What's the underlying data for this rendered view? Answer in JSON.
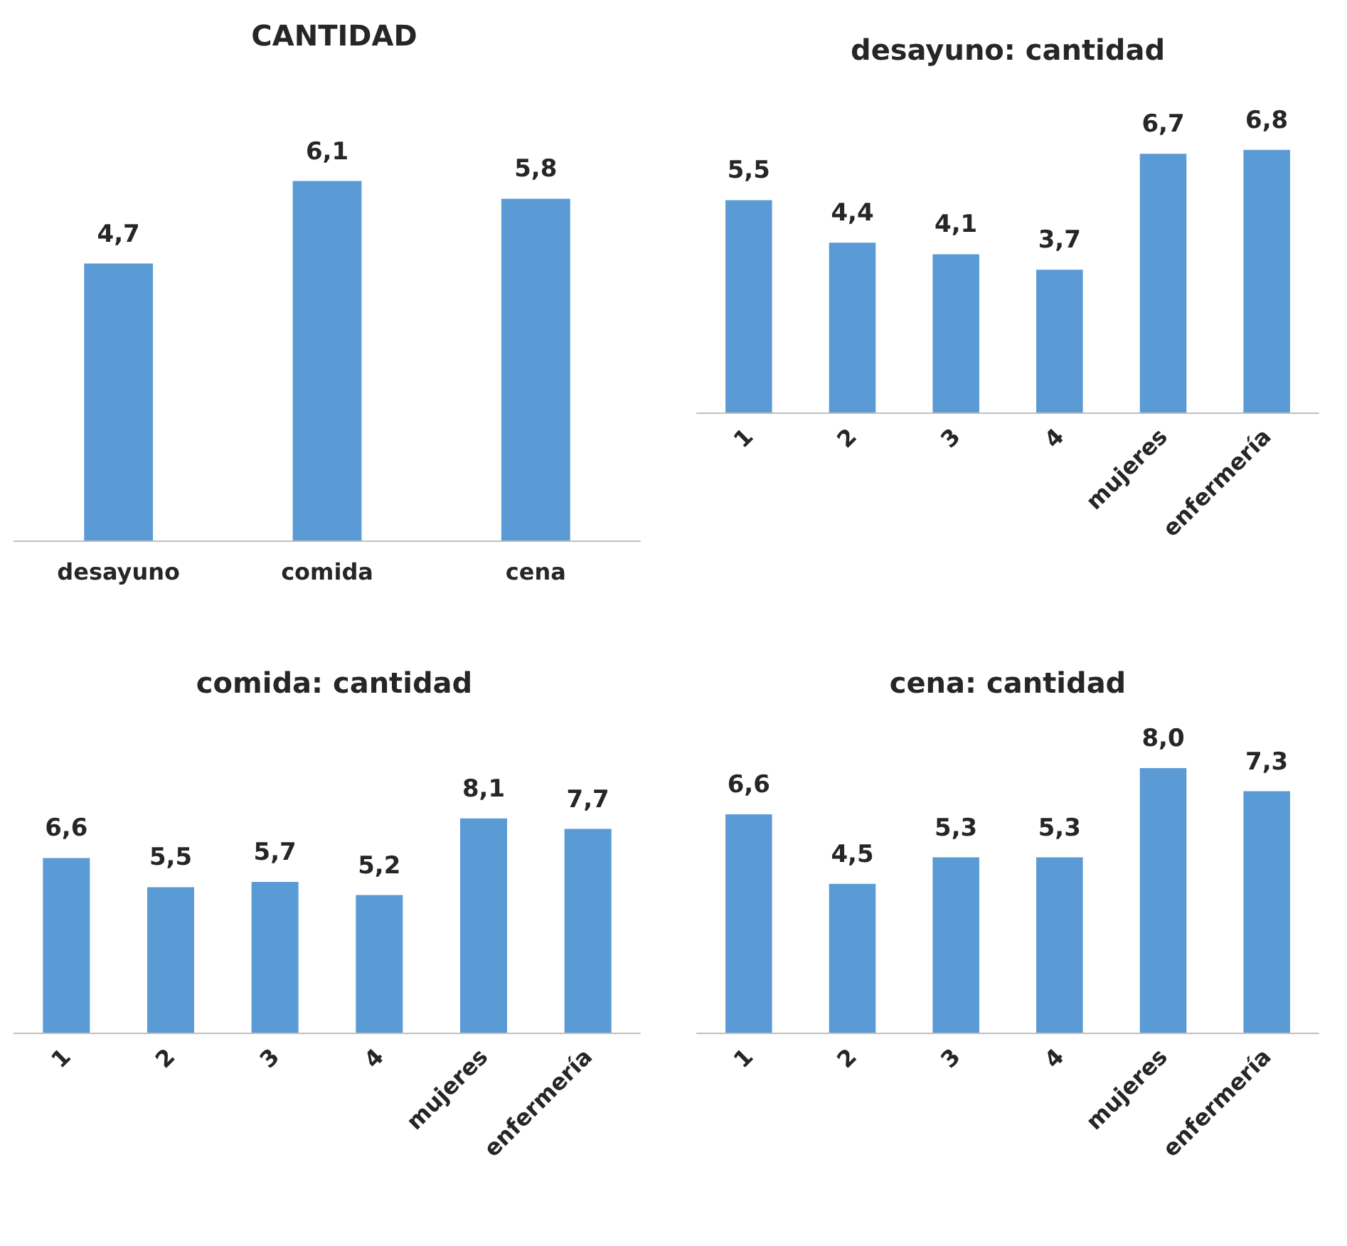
{
  "chart_data": [
    {
      "type": "bar",
      "title": "CANTIDAD",
      "categories": [
        "desayuno",
        "comida",
        "cena"
      ],
      "values": [
        4.7,
        6.1,
        5.8
      ],
      "value_labels": [
        "4,7",
        "6,1",
        "5,8"
      ],
      "color": "#5b9bd5",
      "tick_labels": "x"
    },
    {
      "type": "bar",
      "title": "desayuno: cantidad",
      "categories": [
        "1",
        "2",
        "3",
        "4",
        "mujeres",
        "enfermería"
      ],
      "values": [
        5.5,
        4.4,
        4.1,
        3.7,
        6.7,
        6.8
      ],
      "value_labels": [
        "5,5",
        "4,4",
        "4,1",
        "3,7",
        "6,7",
        "6,8"
      ],
      "color": "#5b9bd5",
      "tick_labels": "x"
    },
    {
      "type": "bar",
      "title": "comida: cantidad",
      "categories": [
        "1",
        "2",
        "3",
        "4",
        "mujeres",
        "enfermería"
      ],
      "values": [
        6.6,
        5.5,
        5.7,
        5.2,
        8.1,
        7.7
      ],
      "value_labels": [
        "6,6",
        "5,5",
        "5,7",
        "5,2",
        "8,1",
        "7,7"
      ],
      "color": "#5b9bd5",
      "tick_labels": "x"
    },
    {
      "type": "bar",
      "title": "cena: cantidad",
      "categories": [
        "1",
        "2",
        "3",
        "4",
        "mujeres",
        "enfermería"
      ],
      "values": [
        6.6,
        4.5,
        5.3,
        5.3,
        8.0,
        7.3
      ],
      "value_labels": [
        "6,6",
        "4,5",
        "5,3",
        "5,3",
        "8,0",
        "7,3"
      ],
      "color": "#5b9bd5",
      "tick_labels": "x"
    }
  ]
}
